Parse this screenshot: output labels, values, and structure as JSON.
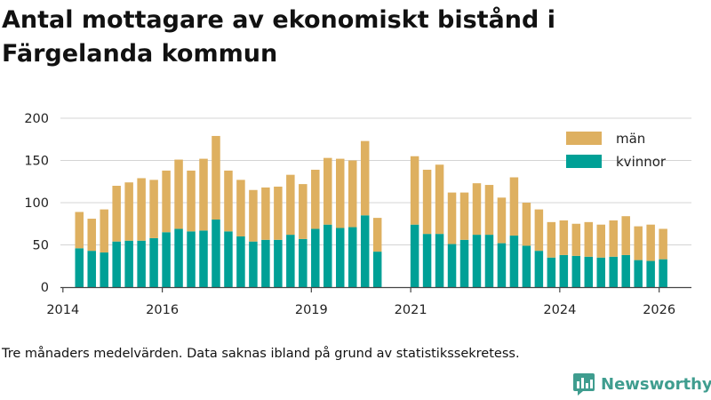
{
  "page": {
    "title": "Antal mottagare av ekonomiskt bistånd i Färgelanda kommun",
    "caption": "Tre månaders medelvärden. Data saknas ibland på grund av statistikssekretess.",
    "brand": "Newsworthy",
    "brand_color": "#3f9d8f"
  },
  "chart_data": {
    "type": "bar",
    "stacked": true,
    "title": "Antal mottagare av ekonomiskt bistånd i Färgelanda kommun",
    "xlabel": "",
    "ylabel": "",
    "ylim": [
      0,
      200
    ],
    "yticks": [
      0,
      50,
      100,
      150,
      200
    ],
    "x_range": [
      2013.95,
      2026.65
    ],
    "xticks": [
      {
        "label": "2014",
        "value": 2014.0
      },
      {
        "label": "2016",
        "value": 2016.0
      },
      {
        "label": "2019",
        "value": 2019.0
      },
      {
        "label": "2021",
        "value": 2021.0
      },
      {
        "label": "2024",
        "value": 2024.0
      },
      {
        "label": "2026",
        "value": 2026.0
      }
    ],
    "grid": true,
    "legend_position": "top-right",
    "colors": {
      "kvinnor": "#00a096",
      "män": "#deb060"
    },
    "x": [
      2014.33,
      2014.58,
      2014.83,
      2015.08,
      2015.33,
      2015.58,
      2015.83,
      2016.08,
      2016.33,
      2016.58,
      2016.83,
      2017.08,
      2017.33,
      2017.58,
      2017.83,
      2018.08,
      2018.33,
      2018.58,
      2018.83,
      2019.08,
      2019.33,
      2019.58,
      2019.83,
      2020.08,
      2020.33,
      2021.08,
      2021.33,
      2021.58,
      2021.83,
      2022.08,
      2022.33,
      2022.58,
      2022.83,
      2023.08,
      2023.33,
      2023.58,
      2023.83,
      2024.08,
      2024.33,
      2024.58,
      2024.83,
      2025.08,
      2025.33,
      2025.58,
      2025.83,
      2026.08
    ],
    "series": [
      {
        "name": "kvinnor",
        "values": [
          46,
          43,
          41,
          54,
          55,
          55,
          58,
          65,
          69,
          66,
          67,
          80,
          66,
          60,
          54,
          56,
          56,
          62,
          57,
          69,
          74,
          70,
          71,
          85,
          42,
          74,
          63,
          63,
          51,
          56,
          62,
          62,
          52,
          61,
          49,
          43,
          35,
          38,
          37,
          36,
          35,
          36,
          38,
          32,
          31,
          33
        ]
      },
      {
        "name": "män",
        "values": [
          43,
          38,
          51,
          66,
          69,
          74,
          69,
          73,
          82,
          72,
          85,
          99,
          72,
          67,
          61,
          62,
          63,
          71,
          65,
          70,
          79,
          82,
          79,
          88,
          40,
          81,
          76,
          82,
          61,
          56,
          61,
          59,
          54,
          69,
          51,
          49,
          42,
          41,
          38,
          41,
          39,
          43,
          46,
          40,
          43,
          36
        ]
      }
    ],
    "legend": [
      "män",
      "kvinnor"
    ]
  }
}
